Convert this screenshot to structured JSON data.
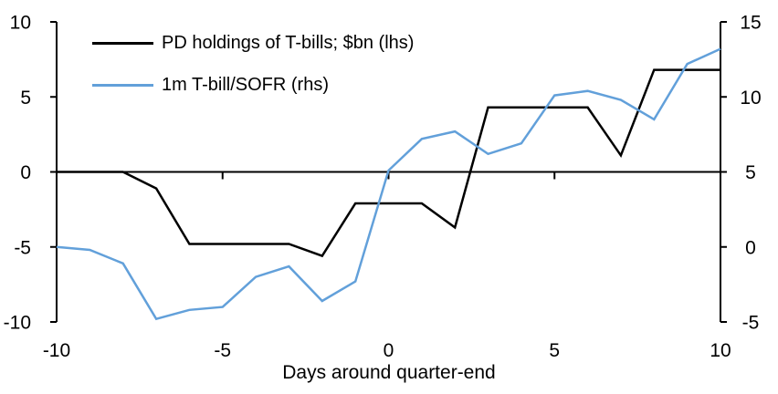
{
  "chart_data": {
    "type": "line",
    "title": "",
    "xlabel": "Days around quarter-end",
    "x": [
      -10,
      -9,
      -8,
      -7,
      -6,
      -5,
      -4,
      -3,
      -2,
      -1,
      0,
      1,
      2,
      3,
      4,
      5,
      6,
      7,
      8,
      9,
      10
    ],
    "series": [
      {
        "name": "PD holdings of T-bills; $bn (lhs)",
        "axis": "left",
        "color": "#000000",
        "values": [
          0,
          0,
          0,
          -1.1,
          -4.8,
          -4.8,
          -4.8,
          -4.8,
          -5.6,
          -2.1,
          -2.1,
          -2.1,
          -3.7,
          4.3,
          4.3,
          4.3,
          4.3,
          1.1,
          6.8,
          6.8,
          6.8
        ]
      },
      {
        "name": "1m T-bill/SOFR (rhs)",
        "axis": "right",
        "color": "#62A0DA",
        "values": [
          0.0,
          -0.2,
          -1.1,
          -4.8,
          -4.2,
          -4.0,
          -2.0,
          -1.3,
          -3.6,
          -2.3,
          5.1,
          7.2,
          7.7,
          6.2,
          6.9,
          10.1,
          10.4,
          9.8,
          8.5,
          12.2,
          13.2
        ]
      }
    ],
    "left_axis": {
      "min": -10,
      "max": 10,
      "ticks": [
        10,
        5,
        0,
        -5,
        -10
      ]
    },
    "right_axis": {
      "min": -5,
      "max": 15,
      "ticks": [
        15,
        10,
        5,
        0,
        -5
      ]
    },
    "x_axis": {
      "min": -10,
      "max": 10,
      "ticks": [
        -10,
        -5,
        0,
        5,
        10
      ],
      "tick_marks": [
        -5,
        0,
        5
      ]
    },
    "grid": false,
    "legend_position": "top-left-inside"
  },
  "colors": {
    "background": "#ffffff",
    "axis": "#000000",
    "text": "#000000"
  }
}
